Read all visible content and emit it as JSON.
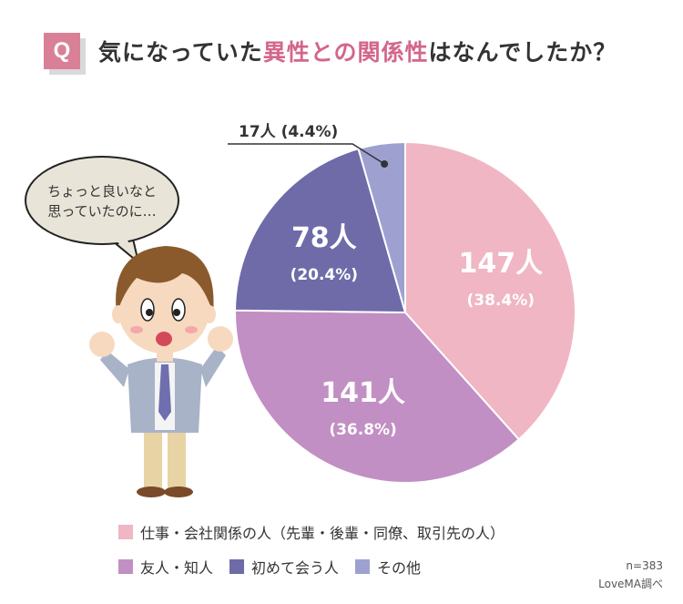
{
  "header": {
    "badge": "Q",
    "title_pre": "気になっていた",
    "title_hl": "異性との関係性",
    "title_post": "はなんでしたか？"
  },
  "bubble": {
    "line1": "ちょっと良いなと",
    "line2": "思っていたのに…"
  },
  "chart_data": {
    "type": "pie",
    "slices": [
      {
        "name": "仕事・会社関係の人（先輩・後輩・同僚、取引先の人）",
        "value": 147,
        "count_label": "147人",
        "pct_label": "(38.4%)",
        "color": "#f0b6c3"
      },
      {
        "name": "友人・知人",
        "value": 141,
        "count_label": "141人",
        "pct_label": "(36.8%)",
        "color": "#c18fc3"
      },
      {
        "name": "初めて会う人",
        "value": 78,
        "count_label": "78人",
        "pct_label": "(20.4%)",
        "color": "#6e6ba8"
      },
      {
        "name": "その他",
        "value": 17,
        "count_label": "17人 (4.4%)",
        "color": "#9ea1d0"
      }
    ]
  },
  "legend": {
    "row1": [
      {
        "label": "仕事・会社関係の人（先輩・後輩・同僚、取引先の人）",
        "color": "#f0b6c3"
      }
    ],
    "row2": [
      {
        "label": "友人・知人",
        "color": "#c18fc3"
      },
      {
        "label": "初めて会う人",
        "color": "#6e6ba8"
      },
      {
        "label": "その他",
        "color": "#9ea1d0"
      }
    ]
  },
  "footer": {
    "n": "n=383",
    "source": "LoveMA調べ"
  }
}
